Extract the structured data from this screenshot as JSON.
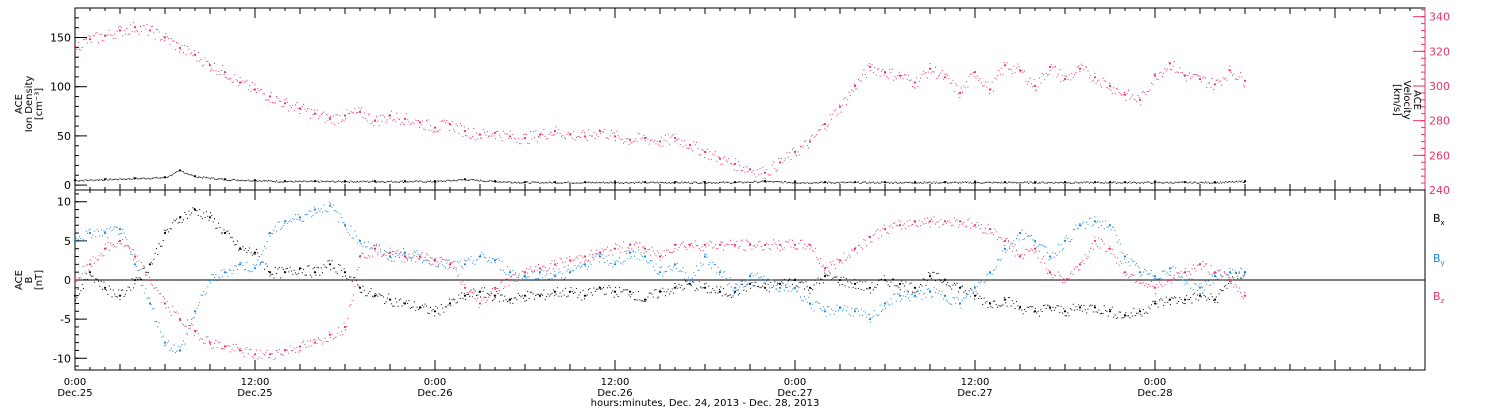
{
  "colors": {
    "black": "#000000",
    "pink": "#e8336b",
    "blue": "#1a86e0",
    "axis": "#000000"
  },
  "chart_data": [
    {
      "type": "scatter",
      "panel": "top",
      "ylabel_left": [
        "ACE",
        "Ion Density",
        "[cm⁻³]"
      ],
      "ylabel_right": [
        "ACE",
        "Velocity",
        "[km/s]"
      ],
      "y_left_range": [
        -5,
        180
      ],
      "y_left_ticks": [
        0,
        50,
        100,
        150
      ],
      "y_left_tick_labels": [
        "0",
        "50",
        "100",
        "150"
      ],
      "y_right_range": [
        240,
        345
      ],
      "y_right_ticks": [
        240,
        260,
        280,
        300,
        320,
        340
      ],
      "y_right_tick_labels": [
        "240",
        "260",
        "280",
        "300",
        "320",
        "340"
      ],
      "grid": false,
      "series": [
        {
          "axis": "left",
          "color": "black",
          "x": [
            0,
            2,
            4,
            6,
            7,
            8,
            10,
            12,
            14,
            16,
            18,
            20,
            22,
            24,
            26,
            28,
            30,
            32,
            34,
            36,
            38,
            40,
            42,
            44,
            46,
            48,
            50,
            52,
            54,
            56,
            58,
            60,
            62,
            64,
            66,
            68,
            69,
            70,
            72,
            74,
            76,
            78
          ],
          "y": [
            5,
            6,
            7,
            8,
            15,
            9,
            6,
            5,
            4,
            4,
            4,
            4,
            4,
            4,
            6,
            4,
            3,
            3,
            3,
            3,
            3,
            3,
            3,
            3,
            4,
            3,
            3,
            3,
            3,
            3,
            3,
            3,
            3,
            3,
            3,
            3,
            3,
            3,
            3,
            3,
            3,
            4
          ]
        },
        {
          "axis": "right",
          "color": "pink",
          "x": [
            0,
            1,
            2,
            3,
            4,
            5,
            6,
            7,
            8,
            9,
            10,
            11,
            12,
            13,
            14,
            15,
            16,
            17,
            18,
            19,
            20,
            21,
            22,
            23,
            24,
            25,
            26,
            27,
            28,
            29,
            30,
            31,
            32,
            33,
            34,
            35,
            36,
            37,
            38,
            39,
            40,
            41,
            42,
            43,
            44,
            45,
            46,
            47,
            48,
            49,
            50,
            51,
            52,
            53,
            54,
            55,
            56,
            57,
            58,
            59,
            60,
            61,
            62,
            63,
            64,
            65,
            66,
            67,
            68,
            69,
            70,
            71,
            72,
            73,
            74,
            75,
            76,
            77,
            78
          ],
          "y": [
            323,
            327,
            329,
            332,
            334,
            332,
            328,
            322,
            318,
            312,
            308,
            302,
            298,
            294,
            290,
            287,
            284,
            281,
            283,
            285,
            280,
            283,
            281,
            279,
            276,
            278,
            274,
            272,
            273,
            271,
            270,
            272,
            274,
            272,
            271,
            274,
            271,
            269,
            270,
            268,
            270,
            266,
            262,
            258,
            255,
            252,
            250,
            256,
            262,
            268,
            278,
            288,
            300,
            311,
            308,
            306,
            302,
            310,
            305,
            296,
            308,
            298,
            312,
            309,
            300,
            311,
            304,
            310,
            305,
            300,
            295,
            292,
            306,
            313,
            306,
            304,
            301,
            309,
            303
          ]
        }
      ]
    },
    {
      "type": "scatter",
      "panel": "bottom",
      "ylabel_left": [
        "ACE",
        "B",
        "[nT]"
      ],
      "y_left_range": [
        -11.5,
        11.5
      ],
      "y_left_ticks": [
        -10,
        -5,
        0,
        5,
        10
      ],
      "y_left_tick_labels": [
        "-10",
        "-5",
        "0",
        "5",
        "10"
      ],
      "zero_line": true,
      "grid": false,
      "series": [
        {
          "name": "Bx",
          "color": "black",
          "x": [
            0,
            1,
            2,
            3,
            4,
            5,
            6,
            7,
            8,
            9,
            10,
            11,
            12,
            13,
            14,
            15,
            16,
            17,
            18,
            19,
            20,
            21,
            22,
            23,
            24,
            25,
            26,
            27,
            28,
            29,
            30,
            31,
            32,
            33,
            34,
            35,
            36,
            37,
            38,
            39,
            40,
            41,
            42,
            43,
            44,
            45,
            46,
            47,
            48,
            49,
            50,
            51,
            52,
            53,
            54,
            55,
            56,
            57,
            58,
            59,
            60,
            61,
            62,
            63,
            64,
            65,
            66,
            67,
            68,
            69,
            70,
            71,
            72,
            73,
            74,
            75,
            76,
            77,
            78
          ],
          "y": [
            -2,
            1,
            -1,
            -2,
            0,
            2,
            6,
            8,
            9,
            8,
            6,
            4,
            3.5,
            1,
            1,
            1.5,
            1,
            2,
            1,
            -1,
            -2,
            -2.5,
            -3,
            -3.5,
            -4,
            -3,
            -2,
            -1.5,
            -2,
            -2.5,
            -2,
            -2,
            -1.5,
            -1.5,
            -2,
            -1,
            -1.5,
            -1.5,
            -2.5,
            -1.5,
            -1,
            -0.5,
            -1,
            -1.5,
            -1.5,
            -0.5,
            -1,
            -0.5,
            0,
            -1,
            0.5,
            0,
            -0.5,
            -1,
            0,
            -0.5,
            -1,
            0.5,
            0,
            -1,
            -2,
            -3,
            -2.5,
            -3.5,
            -4,
            -3.5,
            -4,
            -3.5,
            -3.5,
            -4,
            -4.5,
            -4,
            -3,
            -2.5,
            -2.5,
            -2,
            -2.5,
            0,
            1
          ]
        },
        {
          "name": "By",
          "color": "blue",
          "x": [
            0,
            1,
            2,
            3,
            4,
            5,
            6,
            7,
            8,
            9,
            10,
            11,
            12,
            13,
            14,
            15,
            16,
            17,
            18,
            19,
            20,
            21,
            22,
            23,
            24,
            25,
            26,
            27,
            28,
            29,
            30,
            31,
            32,
            33,
            34,
            35,
            36,
            37,
            38,
            39,
            40,
            41,
            42,
            43,
            44,
            45,
            46,
            47,
            48,
            49,
            50,
            51,
            52,
            53,
            54,
            55,
            56,
            57,
            58,
            59,
            60,
            61,
            62,
            63,
            64,
            65,
            66,
            67,
            68,
            69,
            70,
            71,
            72,
            73,
            74,
            75,
            76,
            77,
            78
          ],
          "y": [
            5,
            6,
            6,
            6.5,
            2,
            -3,
            -8,
            -9,
            -4,
            0,
            1,
            2,
            1.5,
            6,
            7.5,
            8,
            9,
            9.5,
            7,
            5,
            4,
            3,
            3.5,
            3,
            2.5,
            2,
            2,
            3,
            2.5,
            1,
            0.5,
            1,
            0.5,
            1,
            2,
            3,
            2,
            3.5,
            3,
            1,
            2,
            0,
            3,
            1,
            -1,
            0.5,
            0,
            -1,
            -1,
            -3,
            -4,
            -3.5,
            -4,
            -5,
            -3,
            -2,
            -2,
            -1.5,
            -2,
            -3,
            -1,
            1,
            4,
            6,
            5,
            3,
            5,
            7,
            7.5,
            7,
            3,
            1,
            0.5,
            1.5,
            0,
            -1,
            0.5,
            1,
            1
          ]
        },
        {
          "name": "Bz",
          "color": "pink",
          "x": [
            0,
            1,
            2,
            3,
            4,
            5,
            6,
            7,
            8,
            9,
            10,
            11,
            12,
            13,
            14,
            15,
            16,
            17,
            18,
            19,
            20,
            21,
            22,
            23,
            24,
            25,
            26,
            27,
            28,
            29,
            30,
            31,
            32,
            33,
            34,
            35,
            36,
            37,
            38,
            39,
            40,
            41,
            42,
            43,
            44,
            45,
            46,
            47,
            48,
            49,
            50,
            51,
            52,
            53,
            54,
            55,
            56,
            57,
            58,
            59,
            60,
            61,
            62,
            63,
            64,
            65,
            66,
            67,
            68,
            69,
            70,
            71,
            72,
            73,
            74,
            75,
            76,
            77,
            78
          ],
          "y": [
            0,
            2,
            4,
            5,
            3,
            0,
            -3,
            -5,
            -6.5,
            -8,
            -8.5,
            -9,
            -9.5,
            -9.5,
            -9,
            -8.5,
            -8,
            -7,
            -6,
            3,
            4,
            3.5,
            3,
            3,
            2.5,
            2,
            -1,
            -3,
            -1,
            0,
            1,
            1.5,
            2,
            2.5,
            3,
            3.5,
            4,
            4.5,
            4,
            3,
            4.5,
            4.5,
            4.5,
            4.5,
            4.5,
            4.5,
            4.5,
            4.5,
            4.5,
            4.5,
            1.5,
            2.5,
            4,
            5.5,
            6.5,
            7,
            7.5,
            7.5,
            7.5,
            7.5,
            7,
            6.5,
            5,
            3,
            4,
            1,
            0,
            2,
            5,
            4,
            1,
            0,
            -1,
            0,
            1,
            2,
            1,
            0,
            -2
          ]
        }
      ]
    }
  ],
  "x_axis": {
    "range_hours": [
      0,
      90
    ],
    "ticks_hours": [
      0,
      12,
      24,
      36,
      48,
      60,
      72
    ],
    "tick_time_labels": [
      "0:00",
      "12:00",
      "0:00",
      "12:00",
      "0:00",
      "12:00",
      "0:00"
    ],
    "tick_date_labels": [
      "Dec.25",
      "Dec.25",
      "Dec.26",
      "Dec.26",
      "Dec.27",
      "Dec.27",
      "Dec.28"
    ],
    "xlabel": "hours:minutes, Dec. 24, 2013 - Dec. 28, 2013"
  },
  "legend": {
    "labels": [
      "B",
      "B",
      "B"
    ],
    "subscripts": [
      "x",
      "y",
      "z"
    ],
    "colors": [
      "black",
      "blue",
      "pink"
    ],
    "placement": "right"
  }
}
